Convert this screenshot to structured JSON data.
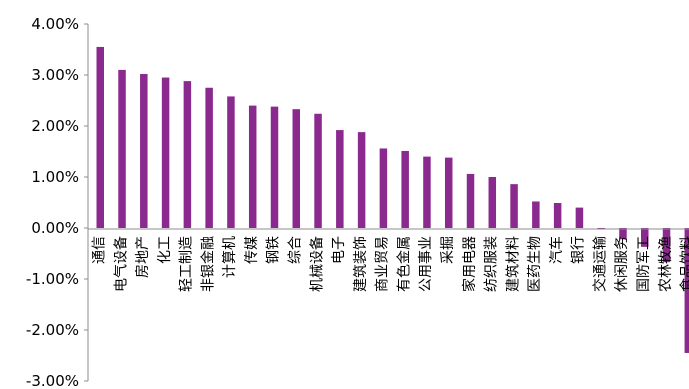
{
  "chart_data": {
    "type": "bar",
    "categories": [
      "通信",
      "电气设备",
      "房地产",
      "化工",
      "轻工制造",
      "非银金融",
      "计算机",
      "传媒",
      "钢铁",
      "综合",
      "机械设备",
      "电子",
      "建筑装饰",
      "商业贸易",
      "有色金属",
      "公用事业",
      "采掘",
      "家用电器",
      "纺织服装",
      "建筑材料",
      "医药生物",
      "汽车",
      "银行",
      "交通运输",
      "休闲服务",
      "国防军工",
      "农林牧渔",
      "食品饮料"
    ],
    "values": [
      3.55,
      3.1,
      3.02,
      2.95,
      2.88,
      2.75,
      2.58,
      2.4,
      2.38,
      2.33,
      2.24,
      1.92,
      1.88,
      1.56,
      1.51,
      1.4,
      1.38,
      1.06,
      1.0,
      0.86,
      0.52,
      0.49,
      0.4,
      -0.02,
      -0.22,
      -0.37,
      -0.67,
      -2.45
    ],
    "title": "",
    "xlabel": "",
    "ylabel": "",
    "ylim": [
      -3,
      4
    ],
    "yticks": [
      "4.00%",
      "3.00%",
      "2.00%",
      "1.00%",
      "0.00%",
      "-1.00%",
      "-2.00%",
      "-3.00%"
    ],
    "grid": false,
    "legend": "none",
    "bar_color": "#8B2A8E"
  }
}
